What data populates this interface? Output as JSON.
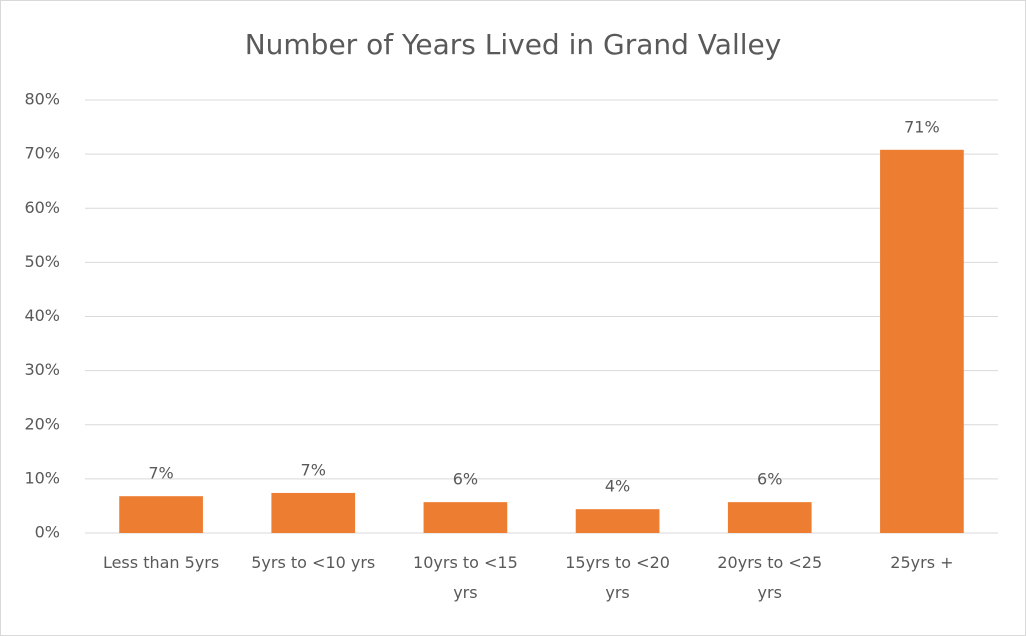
{
  "chart_data": {
    "type": "bar",
    "title": "Number of Years Lived in Grand Valley",
    "categories": [
      "Less than 5yrs",
      "5yrs to <10 yrs",
      "10yrs to <15 yrs",
      "15yrs to <20 yrs",
      "20yrs to <25 yrs",
      "25yrs +"
    ],
    "values": [
      6.8,
      7.4,
      5.7,
      4.4,
      5.7,
      70.8
    ],
    "value_labels": [
      "7%",
      "7%",
      "6%",
      "4%",
      "6%",
      "71%"
    ],
    "color": "#ed7d31",
    "ylim": [
      0,
      80
    ],
    "yticks": [
      {
        "value": 0,
        "label": "0%"
      },
      {
        "value": 10,
        "label": "10%"
      },
      {
        "value": 20,
        "label": "20%"
      },
      {
        "value": 30,
        "label": "30%"
      },
      {
        "value": 40,
        "label": "40%"
      },
      {
        "value": 50,
        "label": "50%"
      },
      {
        "value": 60,
        "label": "60%"
      },
      {
        "value": 70,
        "label": "70%"
      },
      {
        "value": 80,
        "label": "80%"
      }
    ],
    "grid": true
  }
}
